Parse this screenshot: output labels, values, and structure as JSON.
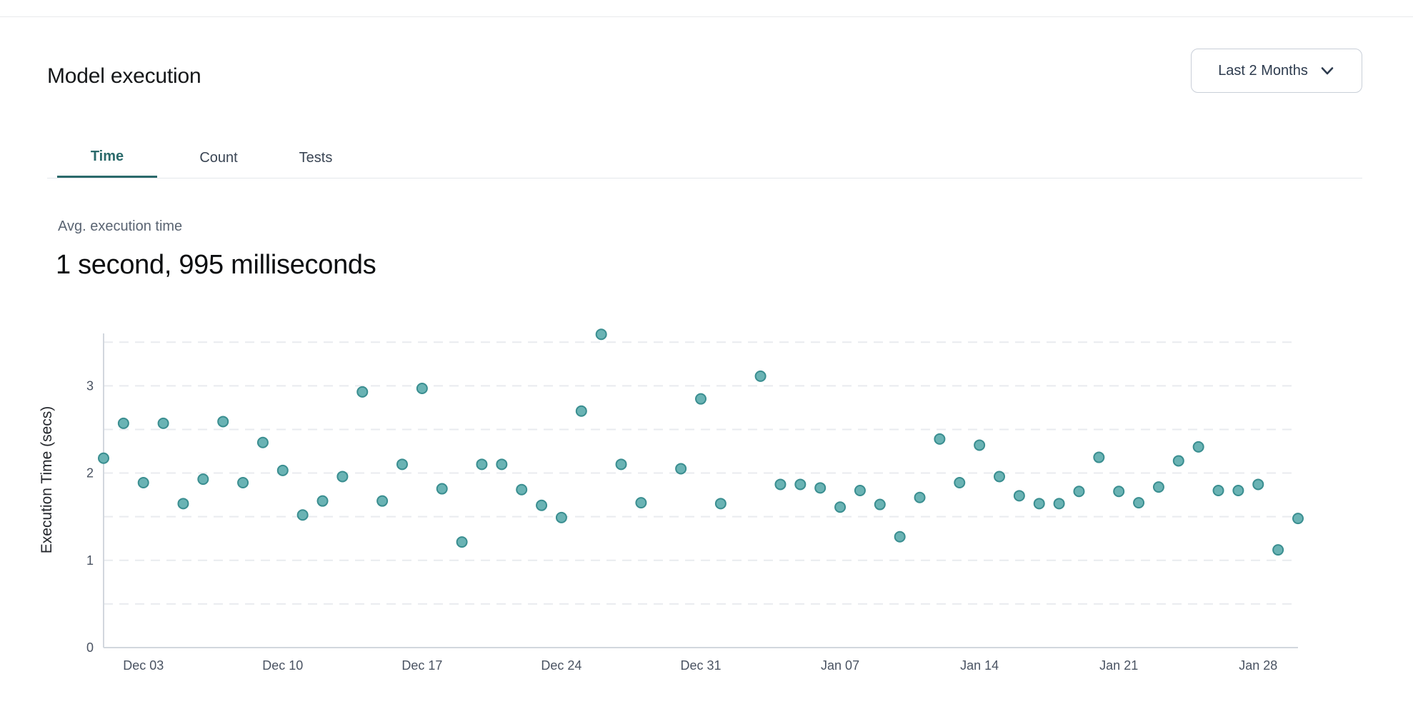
{
  "header": {
    "title": "Model execution",
    "range_label": "Last 2 Months"
  },
  "tabs": [
    {
      "label": "Time",
      "active": true
    },
    {
      "label": "Count",
      "active": false
    },
    {
      "label": "Tests",
      "active": false
    }
  ],
  "metric": {
    "label": "Avg. execution time",
    "value": "1 second, 995 milliseconds"
  },
  "colors": {
    "accent_teal": "#2b6a6b",
    "point_fill": "#6ab3b4",
    "point_stroke": "#3a8e90",
    "text_dark": "#16181a",
    "text_gray": "#5a6472",
    "tick_gray": "#4a5362",
    "border_gray": "#e5e7eb",
    "grid_gray": "#e9ebef",
    "axis_gray": "#d2d7de",
    "dropdown_text": "#2d3b4e"
  },
  "chart_data": {
    "type": "scatter",
    "title": "",
    "xlabel": "",
    "ylabel": "Execution Time (secs)",
    "x_domain": [
      "Dec 01",
      "Jan 30"
    ],
    "x_ticks": [
      "Dec 03",
      "Dec 10",
      "Dec 17",
      "Dec 24",
      "Dec 31",
      "Jan 07",
      "Jan 14",
      "Jan 21",
      "Jan 28"
    ],
    "y_ticks": [
      0,
      1,
      2,
      3
    ],
    "ylim": [
      0,
      3.6
    ],
    "grid": {
      "horizontal_step": 0.5,
      "style": "dashed"
    },
    "legend_position": "none",
    "points": [
      {
        "date": "Dec 01",
        "value": 2.17
      },
      {
        "date": "Dec 02",
        "value": 2.57
      },
      {
        "date": "Dec 03",
        "value": 1.89
      },
      {
        "date": "Dec 04",
        "value": 2.57
      },
      {
        "date": "Dec 05",
        "value": 1.65
      },
      {
        "date": "Dec 06",
        "value": 1.93
      },
      {
        "date": "Dec 07",
        "value": 2.59
      },
      {
        "date": "Dec 08",
        "value": 1.89
      },
      {
        "date": "Dec 09",
        "value": 2.35
      },
      {
        "date": "Dec 10",
        "value": 2.03
      },
      {
        "date": "Dec 11",
        "value": 1.52
      },
      {
        "date": "Dec 12",
        "value": 1.68
      },
      {
        "date": "Dec 13",
        "value": 1.96
      },
      {
        "date": "Dec 14",
        "value": 2.93
      },
      {
        "date": "Dec 15",
        "value": 1.68
      },
      {
        "date": "Dec 16",
        "value": 2.1
      },
      {
        "date": "Dec 17",
        "value": 2.97
      },
      {
        "date": "Dec 18",
        "value": 1.82
      },
      {
        "date": "Dec 19",
        "value": 1.21
      },
      {
        "date": "Dec 20",
        "value": 2.1
      },
      {
        "date": "Dec 21",
        "value": 2.1
      },
      {
        "date": "Dec 22",
        "value": 1.81
      },
      {
        "date": "Dec 23",
        "value": 1.63
      },
      {
        "date": "Dec 24",
        "value": 1.49
      },
      {
        "date": "Dec 25",
        "value": 2.71
      },
      {
        "date": "Dec 26",
        "value": 3.59
      },
      {
        "date": "Dec 27",
        "value": 2.1
      },
      {
        "date": "Dec 28",
        "value": 1.66
      },
      {
        "date": "Dec 30",
        "value": 2.05
      },
      {
        "date": "Dec 31",
        "value": 2.85
      },
      {
        "date": "Jan 01",
        "value": 1.65
      },
      {
        "date": "Jan 03",
        "value": 3.11
      },
      {
        "date": "Jan 04",
        "value": 1.87
      },
      {
        "date": "Jan 05",
        "value": 1.87
      },
      {
        "date": "Jan 06",
        "value": 1.83
      },
      {
        "date": "Jan 07",
        "value": 1.61
      },
      {
        "date": "Jan 08",
        "value": 1.8
      },
      {
        "date": "Jan 09",
        "value": 1.64
      },
      {
        "date": "Jan 10",
        "value": 1.27
      },
      {
        "date": "Jan 11",
        "value": 1.72
      },
      {
        "date": "Jan 12",
        "value": 2.39
      },
      {
        "date": "Jan 13",
        "value": 1.89
      },
      {
        "date": "Jan 14",
        "value": 2.32
      },
      {
        "date": "Jan 15",
        "value": 1.96
      },
      {
        "date": "Jan 16",
        "value": 1.74
      },
      {
        "date": "Jan 17",
        "value": 1.65
      },
      {
        "date": "Jan 18",
        "value": 1.65
      },
      {
        "date": "Jan 19",
        "value": 1.79
      },
      {
        "date": "Jan 20",
        "value": 2.18
      },
      {
        "date": "Jan 21",
        "value": 1.79
      },
      {
        "date": "Jan 22",
        "value": 1.66
      },
      {
        "date": "Jan 23",
        "value": 1.84
      },
      {
        "date": "Jan 24",
        "value": 2.14
      },
      {
        "date": "Jan 25",
        "value": 2.3
      },
      {
        "date": "Jan 26",
        "value": 1.8
      },
      {
        "date": "Jan 27",
        "value": 1.8
      },
      {
        "date": "Jan 28",
        "value": 1.87
      },
      {
        "date": "Jan 29",
        "value": 1.12
      },
      {
        "date": "Jan 30",
        "value": 1.48
      }
    ]
  }
}
